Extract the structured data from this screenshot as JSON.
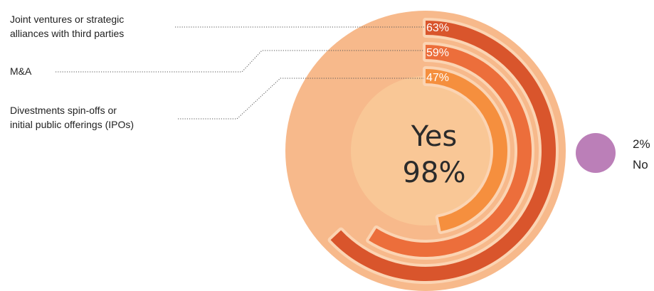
{
  "chart_data": {
    "type": "pie",
    "slices": [
      {
        "label": "Yes",
        "value": 98,
        "display": "98%",
        "color": "#f7b98b"
      },
      {
        "label": "No",
        "value": 2,
        "display": "2%",
        "color": "#bb7fb8"
      }
    ],
    "breakdown": {
      "type": "radial-bar",
      "parent": "Yes",
      "max": 100,
      "items": [
        {
          "label_lines": [
            "Joint ventures or strategic",
            "alliances with third parties"
          ],
          "value": 63,
          "display": "63%",
          "color": "#d9552c"
        },
        {
          "label_lines": [
            "M&A"
          ],
          "value": 59,
          "display": "59%",
          "color": "#ec6e3b"
        },
        {
          "label_lines": [
            "Divestments spin-offs or",
            "initial public offerings (IPOs)"
          ],
          "value": 47,
          "display": "47%",
          "color": "#f58f3e"
        }
      ]
    },
    "colors": {
      "circle": "#f7b98b",
      "inner_fill": "#f9c796",
      "track": "#fbd4b3",
      "no_circle": "#bb7fb8"
    }
  }
}
